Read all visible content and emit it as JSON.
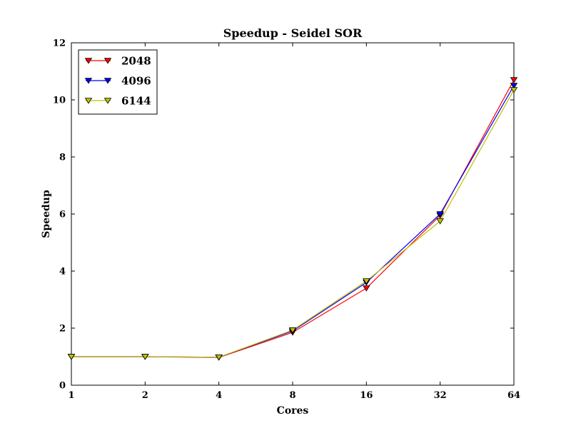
{
  "chart_data": {
    "type": "line",
    "title": "Speedup - Seidel SOR",
    "xlabel": "Cores",
    "ylabel": "Speedup",
    "x_scale": "log2",
    "x": [
      1,
      2,
      4,
      8,
      16,
      32,
      64
    ],
    "x_tick_labels": [
      "1",
      "2",
      "4",
      "8",
      "16",
      "32",
      "64"
    ],
    "ylim": [
      0,
      12
    ],
    "y_ticks": [
      0,
      2,
      4,
      6,
      8,
      10,
      12
    ],
    "y_tick_labels": [
      "0",
      "2",
      "4",
      "6",
      "8",
      "10",
      "12"
    ],
    "grid": false,
    "legend_position": "top-left",
    "marker": "triangle-down",
    "series": [
      {
        "name": "2048",
        "color": "#ff0000",
        "values": [
          1.0,
          1.0,
          0.97,
          1.85,
          3.4,
          5.95,
          10.7
        ]
      },
      {
        "name": "4096",
        "color": "#0000ff",
        "values": [
          1.0,
          1.0,
          0.98,
          1.9,
          3.6,
          6.0,
          10.5
        ]
      },
      {
        "name": "6144",
        "color": "#bfbf00",
        "values": [
          1.0,
          1.0,
          0.98,
          1.93,
          3.65,
          5.75,
          10.35
        ]
      }
    ]
  }
}
